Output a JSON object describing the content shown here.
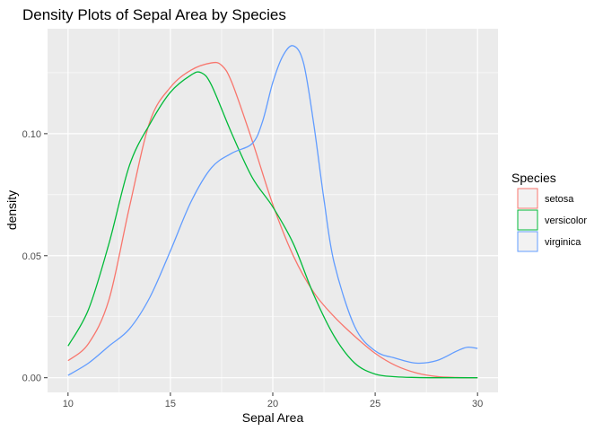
{
  "chart_data": {
    "type": "line",
    "title": "Density Plots of Sepal Area by Species",
    "xlabel": "Sepal Area",
    "ylabel": "density",
    "xlim": [
      9.0,
      31.0
    ],
    "ylim": [
      -0.006,
      0.143
    ],
    "x_ticks": [
      10,
      15,
      20,
      25,
      30
    ],
    "x_tick_labels": [
      "10",
      "15",
      "20",
      "25",
      "30"
    ],
    "y_ticks": [
      0.0,
      0.05,
      0.1
    ],
    "y_tick_labels": [
      "0.00",
      "0.05",
      "0.10"
    ],
    "grid": true,
    "legend": {
      "title": "Species",
      "placement": "right"
    },
    "series": [
      {
        "name": "setosa",
        "color": "#F8766D",
        "x": [
          10,
          11,
          12,
          13,
          14,
          15,
          16,
          17,
          17.5,
          18,
          19,
          20,
          21,
          22,
          23,
          24,
          25,
          26,
          27,
          28,
          29,
          30
        ],
        "y": [
          0.007,
          0.014,
          0.032,
          0.07,
          0.105,
          0.119,
          0.126,
          0.129,
          0.128,
          0.121,
          0.097,
          0.071,
          0.05,
          0.035,
          0.025,
          0.017,
          0.01,
          0.005,
          0.002,
          0.0005,
          0.0001,
          0.0
        ]
      },
      {
        "name": "versicolor",
        "color": "#00BA38",
        "x": [
          10,
          11,
          12,
          13,
          14,
          15,
          16,
          16.5,
          17,
          18,
          19,
          20,
          21,
          22,
          23,
          24,
          25,
          26,
          27,
          28,
          29,
          30
        ],
        "y": [
          0.013,
          0.028,
          0.055,
          0.087,
          0.104,
          0.117,
          0.124,
          0.125,
          0.12,
          0.1,
          0.082,
          0.07,
          0.055,
          0.034,
          0.017,
          0.006,
          0.0015,
          0.0004,
          0.0001,
          0.0,
          0.0,
          0.0
        ]
      },
      {
        "name": "virginica",
        "color": "#619CFF",
        "x": [
          10,
          11,
          12,
          13,
          14,
          15,
          16,
          17,
          18,
          19,
          19.5,
          20,
          20.5,
          21,
          21.5,
          22,
          22.5,
          23,
          24,
          25,
          26,
          27,
          28,
          29,
          29.5,
          30
        ],
        "y": [
          0.001,
          0.006,
          0.013,
          0.02,
          0.033,
          0.052,
          0.072,
          0.086,
          0.092,
          0.096,
          0.105,
          0.121,
          0.132,
          0.136,
          0.129,
          0.104,
          0.073,
          0.047,
          0.021,
          0.011,
          0.008,
          0.006,
          0.007,
          0.011,
          0.0125,
          0.012
        ]
      }
    ]
  }
}
